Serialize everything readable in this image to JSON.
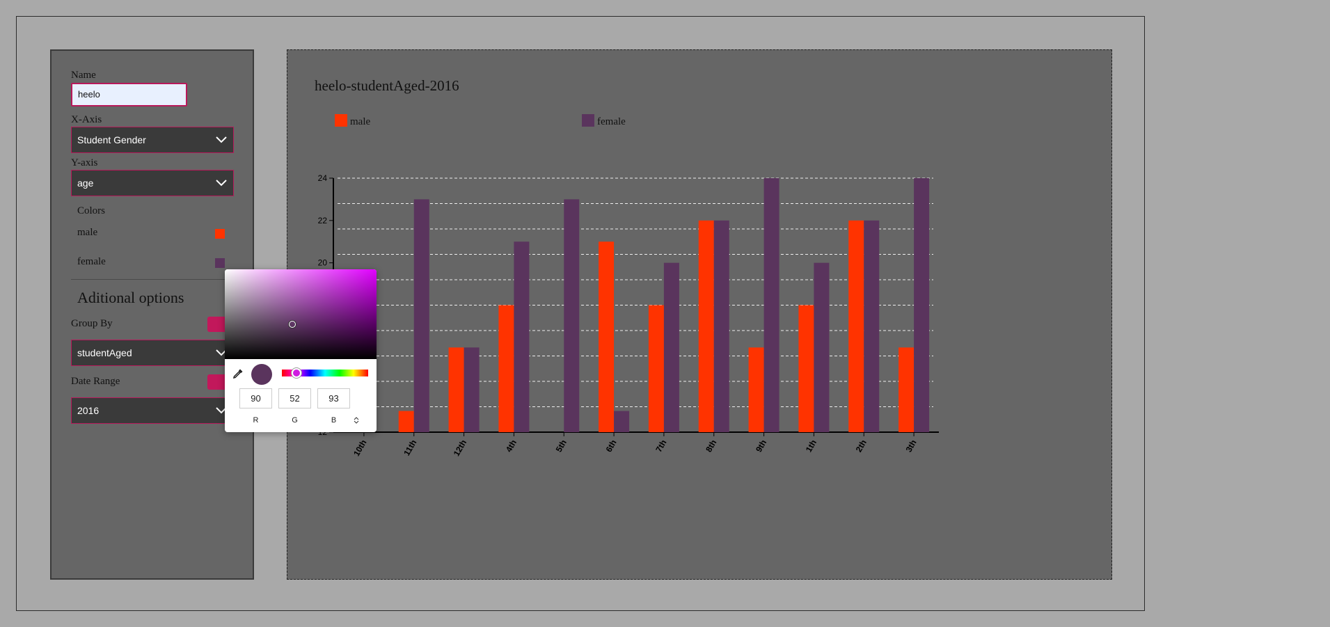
{
  "sidebar": {
    "name_label": "Name",
    "name_value": "heelo",
    "xaxis_label": "X-Axis",
    "xaxis_value": "Student Gender",
    "yaxis_label": "Y-axis",
    "yaxis_value": "age",
    "colors_title": "Colors",
    "colors": [
      {
        "label": "male",
        "color": "#ff3300"
      },
      {
        "label": "female",
        "color": "#5a345d"
      }
    ],
    "additional_title": "Aditional options",
    "groupby_label": "Group By",
    "groupby_value": "studentAged",
    "daterange_label": "Date Range",
    "daterange_value": "2016"
  },
  "picker": {
    "r": "90",
    "g": "52",
    "b": "93",
    "r_label": "R",
    "g_label": "G",
    "b_label": "B",
    "current_color": "#5a345d"
  },
  "chart_data": {
    "type": "bar",
    "title": "heelo-studentAged-2016",
    "categories": [
      "10th",
      "11th",
      "12th",
      "4th",
      "5th",
      "6th",
      "7th",
      "8th",
      "9th",
      "1th",
      "2th",
      "3th"
    ],
    "series": [
      {
        "name": "male",
        "color": "#ff3300",
        "values": [
          12,
          13,
          16,
          18,
          12,
          21,
          18,
          22,
          16,
          18,
          22,
          16
        ]
      },
      {
        "name": "female",
        "color": "#5a345d",
        "values": [
          12,
          23,
          16,
          21,
          23,
          13,
          20,
          22,
          24,
          20,
          22,
          24
        ]
      }
    ],
    "y_ticks": [
      "12",
      "20",
      "22",
      "24"
    ],
    "ylim": [
      12,
      24
    ],
    "grid": true,
    "legend_position": "top-left"
  }
}
